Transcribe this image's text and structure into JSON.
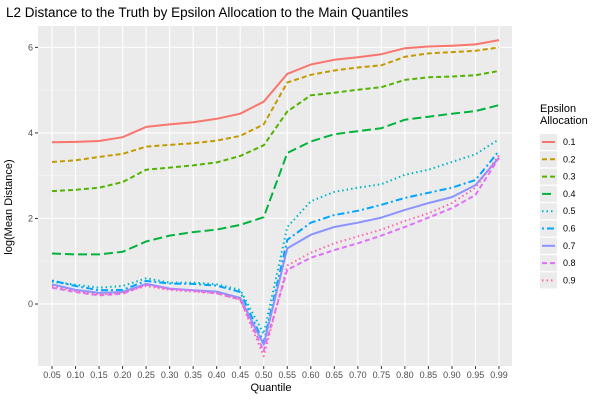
{
  "chart_data": {
    "type": "line",
    "title": "L2 Distance to the Truth by Epsilon Allocation to the Main Quantiles",
    "xlabel": "Quantile",
    "ylabel": "log(Mean Distance)",
    "ylim": [
      -1.45,
      6.5
    ],
    "yticks": [
      0,
      2,
      4,
      6
    ],
    "grid": true,
    "legend_position": "right",
    "legend_title": "Epsilon\nAllocation",
    "x": [
      "0.05",
      "0.10",
      "0.15",
      "0.20",
      "0.25",
      "0.30",
      "0.35",
      "0.40",
      "0.45",
      "0.50",
      "0.55",
      "0.60",
      "0.65",
      "0.70",
      "0.75",
      "0.80",
      "0.85",
      "0.90",
      "0.95",
      "0.99"
    ],
    "series": [
      {
        "name": "0.1",
        "color": "#F8766D",
        "dash": "solid",
        "values": [
          3.78,
          3.79,
          3.81,
          3.9,
          4.14,
          4.2,
          4.25,
          4.33,
          4.45,
          4.73,
          5.38,
          5.6,
          5.71,
          5.77,
          5.84,
          5.98,
          6.02,
          6.04,
          6.07,
          6.17
        ]
      },
      {
        "name": "0.2",
        "color": "#C49A00",
        "dash": "dashed",
        "values": [
          3.32,
          3.36,
          3.44,
          3.51,
          3.68,
          3.72,
          3.76,
          3.82,
          3.93,
          4.2,
          5.18,
          5.36,
          5.46,
          5.53,
          5.58,
          5.78,
          5.86,
          5.89,
          5.92,
          6.0
        ]
      },
      {
        "name": "0.3",
        "color": "#53B400",
        "dash": "dashed",
        "values": [
          2.64,
          2.67,
          2.72,
          2.85,
          3.14,
          3.19,
          3.24,
          3.31,
          3.46,
          3.71,
          4.5,
          4.88,
          4.94,
          5.01,
          5.07,
          5.24,
          5.3,
          5.32,
          5.35,
          5.45
        ]
      },
      {
        "name": "0.4",
        "color": "#00B33C",
        "dash": "longdash",
        "values": [
          1.18,
          1.16,
          1.16,
          1.22,
          1.46,
          1.6,
          1.68,
          1.74,
          1.85,
          2.03,
          3.53,
          3.8,
          3.97,
          4.04,
          4.11,
          4.31,
          4.38,
          4.45,
          4.51,
          4.65
        ]
      },
      {
        "name": "0.5",
        "color": "#00B6C4",
        "dash": "dotted",
        "values": [
          0.52,
          0.45,
          0.38,
          0.42,
          0.6,
          0.5,
          0.5,
          0.46,
          0.33,
          -0.7,
          1.8,
          2.4,
          2.62,
          2.72,
          2.8,
          3.02,
          3.14,
          3.32,
          3.5,
          3.85
        ]
      },
      {
        "name": "0.6",
        "color": "#00A5FF",
        "dash": "dotdash",
        "values": [
          0.55,
          0.42,
          0.32,
          0.33,
          0.54,
          0.48,
          0.47,
          0.43,
          0.28,
          -0.9,
          1.5,
          1.9,
          2.08,
          2.18,
          2.32,
          2.48,
          2.6,
          2.72,
          2.9,
          3.58
        ]
      },
      {
        "name": "0.7",
        "color": "#8B93FF",
        "dash": "solid",
        "values": [
          0.46,
          0.33,
          0.26,
          0.28,
          0.47,
          0.36,
          0.32,
          0.29,
          0.14,
          -0.95,
          1.3,
          1.62,
          1.8,
          1.9,
          2.02,
          2.2,
          2.36,
          2.5,
          2.78,
          3.42
        ]
      },
      {
        "name": "0.8",
        "color": "#DF70F8",
        "dash": "dashed",
        "values": [
          0.38,
          0.28,
          0.2,
          0.24,
          0.45,
          0.35,
          0.31,
          0.25,
          0.1,
          -1.1,
          0.8,
          1.08,
          1.26,
          1.42,
          1.6,
          1.8,
          2.02,
          2.24,
          2.55,
          3.42
        ]
      },
      {
        "name": "0.9",
        "color": "#FF64B0",
        "dash": "dotted",
        "values": [
          0.42,
          0.3,
          0.22,
          0.26,
          0.42,
          0.33,
          0.29,
          0.25,
          0.11,
          -1.22,
          0.9,
          1.2,
          1.42,
          1.58,
          1.74,
          1.94,
          2.12,
          2.36,
          2.72,
          3.48
        ]
      }
    ]
  }
}
